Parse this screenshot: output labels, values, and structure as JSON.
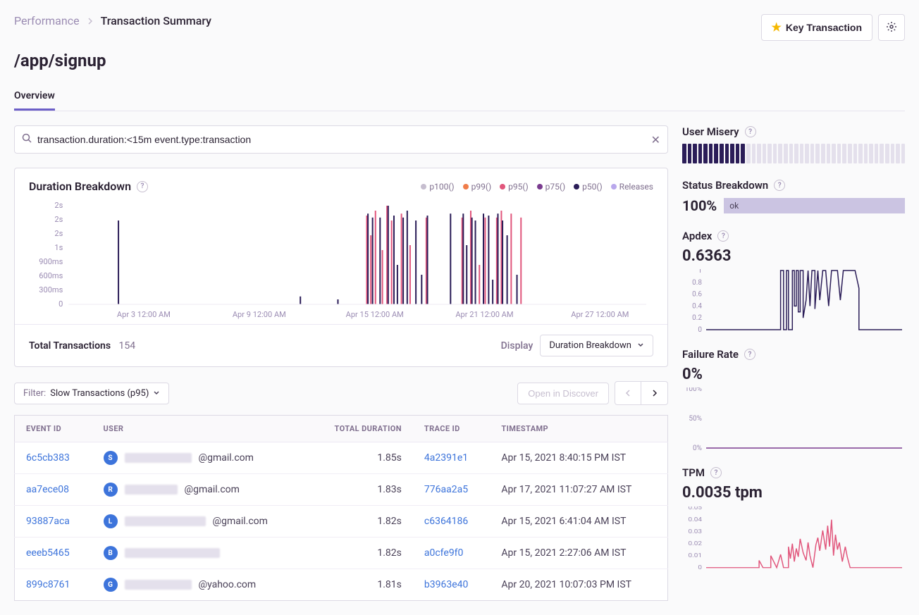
{
  "breadcrumb": {
    "parent": "Performance",
    "current": "Transaction Summary"
  },
  "header_actions": {
    "key_transaction": "Key Transaction"
  },
  "page_title": "/app/signup",
  "tabs": [
    {
      "label": "Overview",
      "active": true
    }
  ],
  "search": {
    "query": "transaction.duration:<15m event.type:transaction"
  },
  "duration_breakdown": {
    "title": "Duration Breakdown",
    "legend": [
      {
        "label": "p100()",
        "color": "#c6becf"
      },
      {
        "label": "p99()",
        "color": "#f07d4a"
      },
      {
        "label": "p95()",
        "color": "#e1567c"
      },
      {
        "label": "p75()",
        "color": "#7a3b8f"
      },
      {
        "label": "p50()",
        "color": "#2b1d58"
      },
      {
        "label": "Releases",
        "color": "#b9a8ec"
      }
    ],
    "yticks": [
      "2s",
      "2s",
      "2s",
      "1s",
      "900ms",
      "600ms",
      "300ms",
      "0"
    ],
    "xticks": [
      "Apr 3 12:00 AM",
      "Apr 9 12:00 AM",
      "Apr 15 12:00 AM",
      "Apr 21 12:00 AM",
      "Apr 27 12:00 AM"
    ],
    "xtick_pos": [
      0.13,
      0.33,
      0.53,
      0.72,
      0.92
    ],
    "spikes": [
      {
        "x": 0.085,
        "h": 0.85,
        "c": "#2b1d58"
      },
      {
        "x": 0.4,
        "h": 0.08,
        "c": "#2b1d58"
      },
      {
        "x": 0.465,
        "h": 0.05,
        "c": "#2b1d58"
      },
      {
        "x": 0.515,
        "h": 0.9,
        "c": "#e1567c"
      },
      {
        "x": 0.517,
        "h": 0.92,
        "c": "#2b1d58"
      },
      {
        "x": 0.522,
        "h": 0.7,
        "c": "#e1567c"
      },
      {
        "x": 0.525,
        "h": 0.88,
        "c": "#2b1d58"
      },
      {
        "x": 0.53,
        "h": 0.95,
        "c": "#e1567c"
      },
      {
        "x": 0.538,
        "h": 0.88,
        "c": "#2b1d58"
      },
      {
        "x": 0.542,
        "h": 0.55,
        "c": "#e1567c"
      },
      {
        "x": 0.55,
        "h": 1.0,
        "c": "#e1567c"
      },
      {
        "x": 0.552,
        "h": 1.0,
        "c": "#2b1d58"
      },
      {
        "x": 0.558,
        "h": 0.85,
        "c": "#e1567c"
      },
      {
        "x": 0.562,
        "h": 0.9,
        "c": "#2b1d58"
      },
      {
        "x": 0.568,
        "h": 0.4,
        "c": "#2b1d58"
      },
      {
        "x": 0.575,
        "h": 0.92,
        "c": "#e1567c"
      },
      {
        "x": 0.578,
        "h": 0.88,
        "c": "#2b1d58"
      },
      {
        "x": 0.585,
        "h": 0.95,
        "c": "#2b1d58"
      },
      {
        "x": 0.59,
        "h": 0.6,
        "c": "#e1567c"
      },
      {
        "x": 0.6,
        "h": 0.85,
        "c": "#2b1d58"
      },
      {
        "x": 0.61,
        "h": 0.3,
        "c": "#2b1d58"
      },
      {
        "x": 0.618,
        "h": 0.88,
        "c": "#e1567c"
      },
      {
        "x": 0.62,
        "h": 0.9,
        "c": "#2b1d58"
      },
      {
        "x": 0.66,
        "h": 0.92,
        "c": "#2b1d58"
      },
      {
        "x": 0.68,
        "h": 0.88,
        "c": "#e1567c"
      },
      {
        "x": 0.682,
        "h": 0.92,
        "c": "#2b1d58"
      },
      {
        "x": 0.688,
        "h": 0.6,
        "c": "#2b1d58"
      },
      {
        "x": 0.695,
        "h": 0.95,
        "c": "#e1567c"
      },
      {
        "x": 0.697,
        "h": 0.88,
        "c": "#2b1d58"
      },
      {
        "x": 0.703,
        "h": 0.85,
        "c": "#2b1d58"
      },
      {
        "x": 0.71,
        "h": 0.4,
        "c": "#e1567c"
      },
      {
        "x": 0.717,
        "h": 0.92,
        "c": "#2b1d58"
      },
      {
        "x": 0.72,
        "h": 0.88,
        "c": "#e1567c"
      },
      {
        "x": 0.726,
        "h": 0.9,
        "c": "#2b1d58"
      },
      {
        "x": 0.733,
        "h": 0.25,
        "c": "#2b1d58"
      },
      {
        "x": 0.74,
        "h": 0.88,
        "c": "#e1567c"
      },
      {
        "x": 0.742,
        "h": 0.92,
        "c": "#2b1d58"
      },
      {
        "x": 0.748,
        "h": 0.95,
        "c": "#e1567c"
      },
      {
        "x": 0.75,
        "h": 0.85,
        "c": "#2b1d58"
      },
      {
        "x": 0.758,
        "h": 0.7,
        "c": "#2b1d58"
      },
      {
        "x": 0.765,
        "h": 0.92,
        "c": "#e1567c"
      },
      {
        "x": 0.775,
        "h": 0.3,
        "c": "#2b1d58"
      },
      {
        "x": 0.782,
        "h": 0.88,
        "c": "#e1567c"
      }
    ],
    "total_transactions_label": "Total Transactions",
    "total_transactions_value": "154",
    "display_label": "Display",
    "display_selected": "Duration Breakdown"
  },
  "table_controls": {
    "filter_label": "Filter:",
    "filter_value": "Slow Transactions (p95)",
    "open_in_discover": "Open in Discover"
  },
  "table": {
    "columns": [
      "EVENT ID",
      "USER",
      "TOTAL DURATION",
      "TRACE ID",
      "TIMESTAMP"
    ],
    "rows": [
      {
        "event": "6c5cb383",
        "avatar": "S",
        "avatar_color": "#3d74db",
        "email_suffix": "@gmail.com",
        "redact_w": 95,
        "duration": "1.85s",
        "trace": "4a2391e1",
        "ts": "Apr 15, 2021 8:40:15 PM IST"
      },
      {
        "event": "aa7ece08",
        "avatar": "R",
        "avatar_color": "#3d74db",
        "email_suffix": "@gmail.com",
        "redact_w": 75,
        "duration": "1.83s",
        "trace": "776aa2a5",
        "ts": "Apr 17, 2021 11:07:27 AM IST"
      },
      {
        "event": "93887aca",
        "avatar": "L",
        "avatar_color": "#3d74db",
        "email_suffix": "@gmail.com",
        "redact_w": 115,
        "duration": "1.82s",
        "trace": "c6364186",
        "ts": "Apr 15, 2021 6:41:04 AM IST"
      },
      {
        "event": "eeeb5465",
        "avatar": "B",
        "avatar_color": "#3d74db",
        "email_suffix": "",
        "redact_w": 135,
        "duration": "1.82s",
        "trace": "a0cfe9f0",
        "ts": "Apr 15, 2021 2:27:06 AM IST"
      },
      {
        "event": "899c8761",
        "avatar": "G",
        "avatar_color": "#3d74db",
        "email_suffix": "@yahoo.com",
        "redact_w": 95,
        "duration": "1.81s",
        "trace": "b3963e40",
        "ts": "Apr 20, 2021 10:07:03 PM IST"
      }
    ]
  },
  "sidebar": {
    "user_misery": {
      "title": "User Misery",
      "filled": 12,
      "total": 42
    },
    "status_breakdown": {
      "title": "Status Breakdown",
      "pct": "100%",
      "label": "ok",
      "chip_color": "#cbc4e2"
    },
    "apdex": {
      "title": "Apdex",
      "value": "0.6363",
      "yticks": [
        "1",
        "0.8",
        "0.6",
        "0.4",
        "0.2",
        "0"
      ],
      "line_color": "#2b1d58",
      "points": [
        [
          0.0,
          0
        ],
        [
          0.38,
          0
        ],
        [
          0.38,
          1
        ],
        [
          0.395,
          1
        ],
        [
          0.395,
          0
        ],
        [
          0.41,
          0
        ],
        [
          0.41,
          1
        ],
        [
          0.42,
          1
        ],
        [
          0.42,
          0
        ],
        [
          0.44,
          0
        ],
        [
          0.44,
          1
        ],
        [
          0.45,
          1
        ],
        [
          0.45,
          0.4
        ],
        [
          0.46,
          0.4
        ],
        [
          0.46,
          1
        ],
        [
          0.47,
          1
        ],
        [
          0.47,
          0.3
        ],
        [
          0.48,
          0.3
        ],
        [
          0.48,
          1
        ],
        [
          0.495,
          1
        ],
        [
          0.495,
          0.2
        ],
        [
          0.51,
          0.5
        ],
        [
          0.52,
          1
        ],
        [
          0.53,
          0.4
        ],
        [
          0.54,
          1
        ],
        [
          0.555,
          1
        ],
        [
          0.555,
          0.35
        ],
        [
          0.57,
          1
        ],
        [
          0.58,
          0.5
        ],
        [
          0.595,
          1
        ],
        [
          0.61,
          1
        ],
        [
          0.625,
          0.4
        ],
        [
          0.64,
          1
        ],
        [
          0.655,
          1
        ],
        [
          0.67,
          1
        ],
        [
          0.685,
          0.5
        ],
        [
          0.7,
          1
        ],
        [
          0.72,
          1
        ],
        [
          0.74,
          1
        ],
        [
          0.76,
          1
        ],
        [
          0.78,
          0.7
        ],
        [
          0.78,
          0
        ],
        [
          1.0,
          0
        ]
      ]
    },
    "failure_rate": {
      "title": "Failure Rate",
      "value": "0%",
      "yticks": [
        "100%",
        "50%",
        "0%"
      ],
      "line_color": "#7a3b8f",
      "value_line": 0
    },
    "tpm": {
      "title": "TPM",
      "value": "0.0035 tpm",
      "yticks": [
        "0.05",
        "0.04",
        "0.03",
        "0.02",
        "0.01",
        "0"
      ],
      "line_color": "#e1567c",
      "points": [
        [
          0.0,
          0
        ],
        [
          0.27,
          0
        ],
        [
          0.27,
          0.12
        ],
        [
          0.29,
          0
        ],
        [
          0.33,
          0
        ],
        [
          0.33,
          0.2
        ],
        [
          0.345,
          0.1
        ],
        [
          0.36,
          0
        ],
        [
          0.38,
          0.22
        ],
        [
          0.395,
          0
        ],
        [
          0.42,
          0
        ],
        [
          0.42,
          0.35
        ],
        [
          0.43,
          0.15
        ],
        [
          0.44,
          0.4
        ],
        [
          0.45,
          0.1
        ],
        [
          0.46,
          0.32
        ],
        [
          0.47,
          0.18
        ],
        [
          0.48,
          0.48
        ],
        [
          0.495,
          0.25
        ],
        [
          0.51,
          0.12
        ],
        [
          0.52,
          0.42
        ],
        [
          0.53,
          0.2
        ],
        [
          0.545,
          0
        ],
        [
          0.56,
          0.38
        ],
        [
          0.57,
          0.5
        ],
        [
          0.58,
          0.28
        ],
        [
          0.595,
          0.62
        ],
        [
          0.61,
          0.3
        ],
        [
          0.62,
          0.7
        ],
        [
          0.63,
          0.35
        ],
        [
          0.64,
          0.8
        ],
        [
          0.65,
          0.2
        ],
        [
          0.66,
          0.55
        ],
        [
          0.67,
          0.3
        ],
        [
          0.68,
          0.42
        ],
        [
          0.695,
          0.1
        ],
        [
          0.71,
          0.35
        ],
        [
          0.72,
          0.18
        ],
        [
          0.735,
          0
        ],
        [
          1.0,
          0
        ]
      ]
    }
  }
}
